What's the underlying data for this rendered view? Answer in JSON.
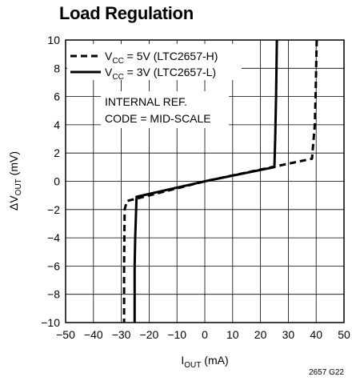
{
  "chart_data": {
    "type": "line",
    "title": "Load Regulation",
    "xlabel": {
      "main": "I",
      "sub": "OUT",
      "unit": " (mA)"
    },
    "ylabel": {
      "main": "ΔV",
      "sub": "OUT",
      "unit": " (mV)"
    },
    "xlim": [
      -50,
      50
    ],
    "ylim": [
      -10,
      10
    ],
    "xticks": [
      "−50",
      "−40",
      "−30",
      "−20",
      "−10",
      "0",
      "10",
      "20",
      "30",
      "40",
      "50"
    ],
    "yticks": [
      "10",
      "8",
      "6",
      "4",
      "2",
      "0",
      "−2",
      "−4",
      "−6",
      "−8",
      "−10"
    ],
    "grid": true,
    "series": [
      {
        "label_main": "V",
        "label_sub": "CC",
        "label_rest": " = 5V (LTC2657-H)",
        "style": "dashed",
        "x": [
          40.2,
          39.8,
          39.5,
          38.5,
          0,
          -28.0,
          -28.8,
          -29.0,
          -29.0
        ],
        "y": [
          10,
          6,
          4,
          1.6,
          0,
          -1.4,
          -2.0,
          -6,
          -10
        ]
      },
      {
        "label_main": "V",
        "label_sub": "CC",
        "label_rest": " = 3V (LTC2657-L)",
        "style": "solid",
        "x": [
          25.9,
          25.6,
          25.3,
          25.0,
          0,
          -24.5,
          -25.0,
          -25.2,
          -25.2
        ],
        "y": [
          10,
          6,
          3,
          1.0,
          0,
          -1.1,
          -4.0,
          -6,
          -10
        ]
      }
    ],
    "legend_position": "top-left",
    "annotations": [
      "INTERNAL REF.",
      "CODE = MID-SCALE"
    ]
  },
  "figure_id": "2657 G22",
  "colors": {
    "line": "#000000",
    "grid": "#000000",
    "background": "#ffffff"
  }
}
